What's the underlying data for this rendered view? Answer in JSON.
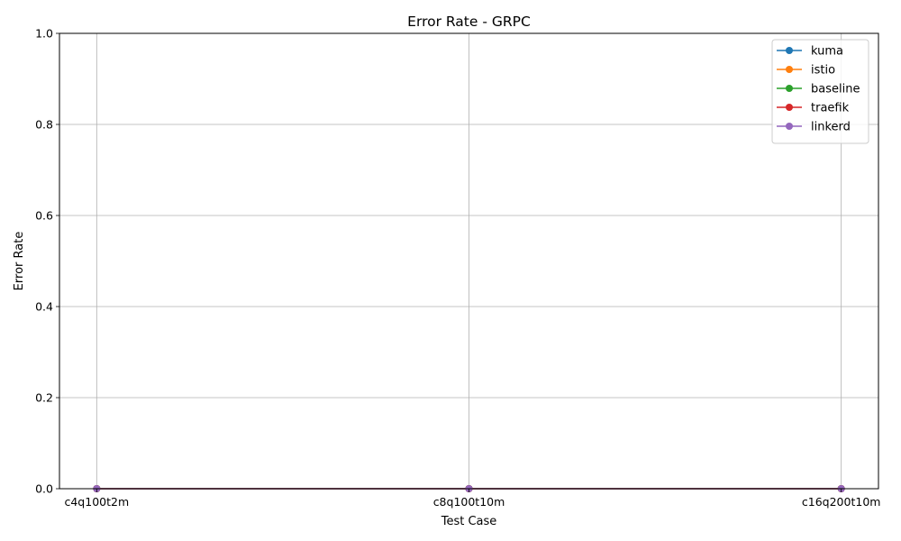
{
  "chart_data": {
    "type": "line",
    "title": "Error Rate - GRPC",
    "xlabel": "Test Case",
    "ylabel": "Error Rate",
    "categories": [
      "c4q100t2m",
      "c8q100t10m",
      "c16q200t10m"
    ],
    "ylim": [
      0,
      1
    ],
    "yticks": [
      "0.0",
      "0.2",
      "0.4",
      "0.6",
      "0.8",
      "1.0"
    ],
    "grid": true,
    "legend_position": "top-right",
    "series": [
      {
        "name": "kuma",
        "values": [
          0,
          0,
          0
        ],
        "color": "#1f77b4"
      },
      {
        "name": "istio",
        "values": [
          0,
          0,
          0
        ],
        "color": "#ff7f0e"
      },
      {
        "name": "baseline",
        "values": [
          0,
          0,
          0
        ],
        "color": "#2ca02c"
      },
      {
        "name": "traefik",
        "values": [
          0,
          0,
          0
        ],
        "color": "#d62728"
      },
      {
        "name": "linkerd",
        "values": [
          0,
          0,
          0
        ],
        "color": "#9467bd"
      }
    ]
  }
}
